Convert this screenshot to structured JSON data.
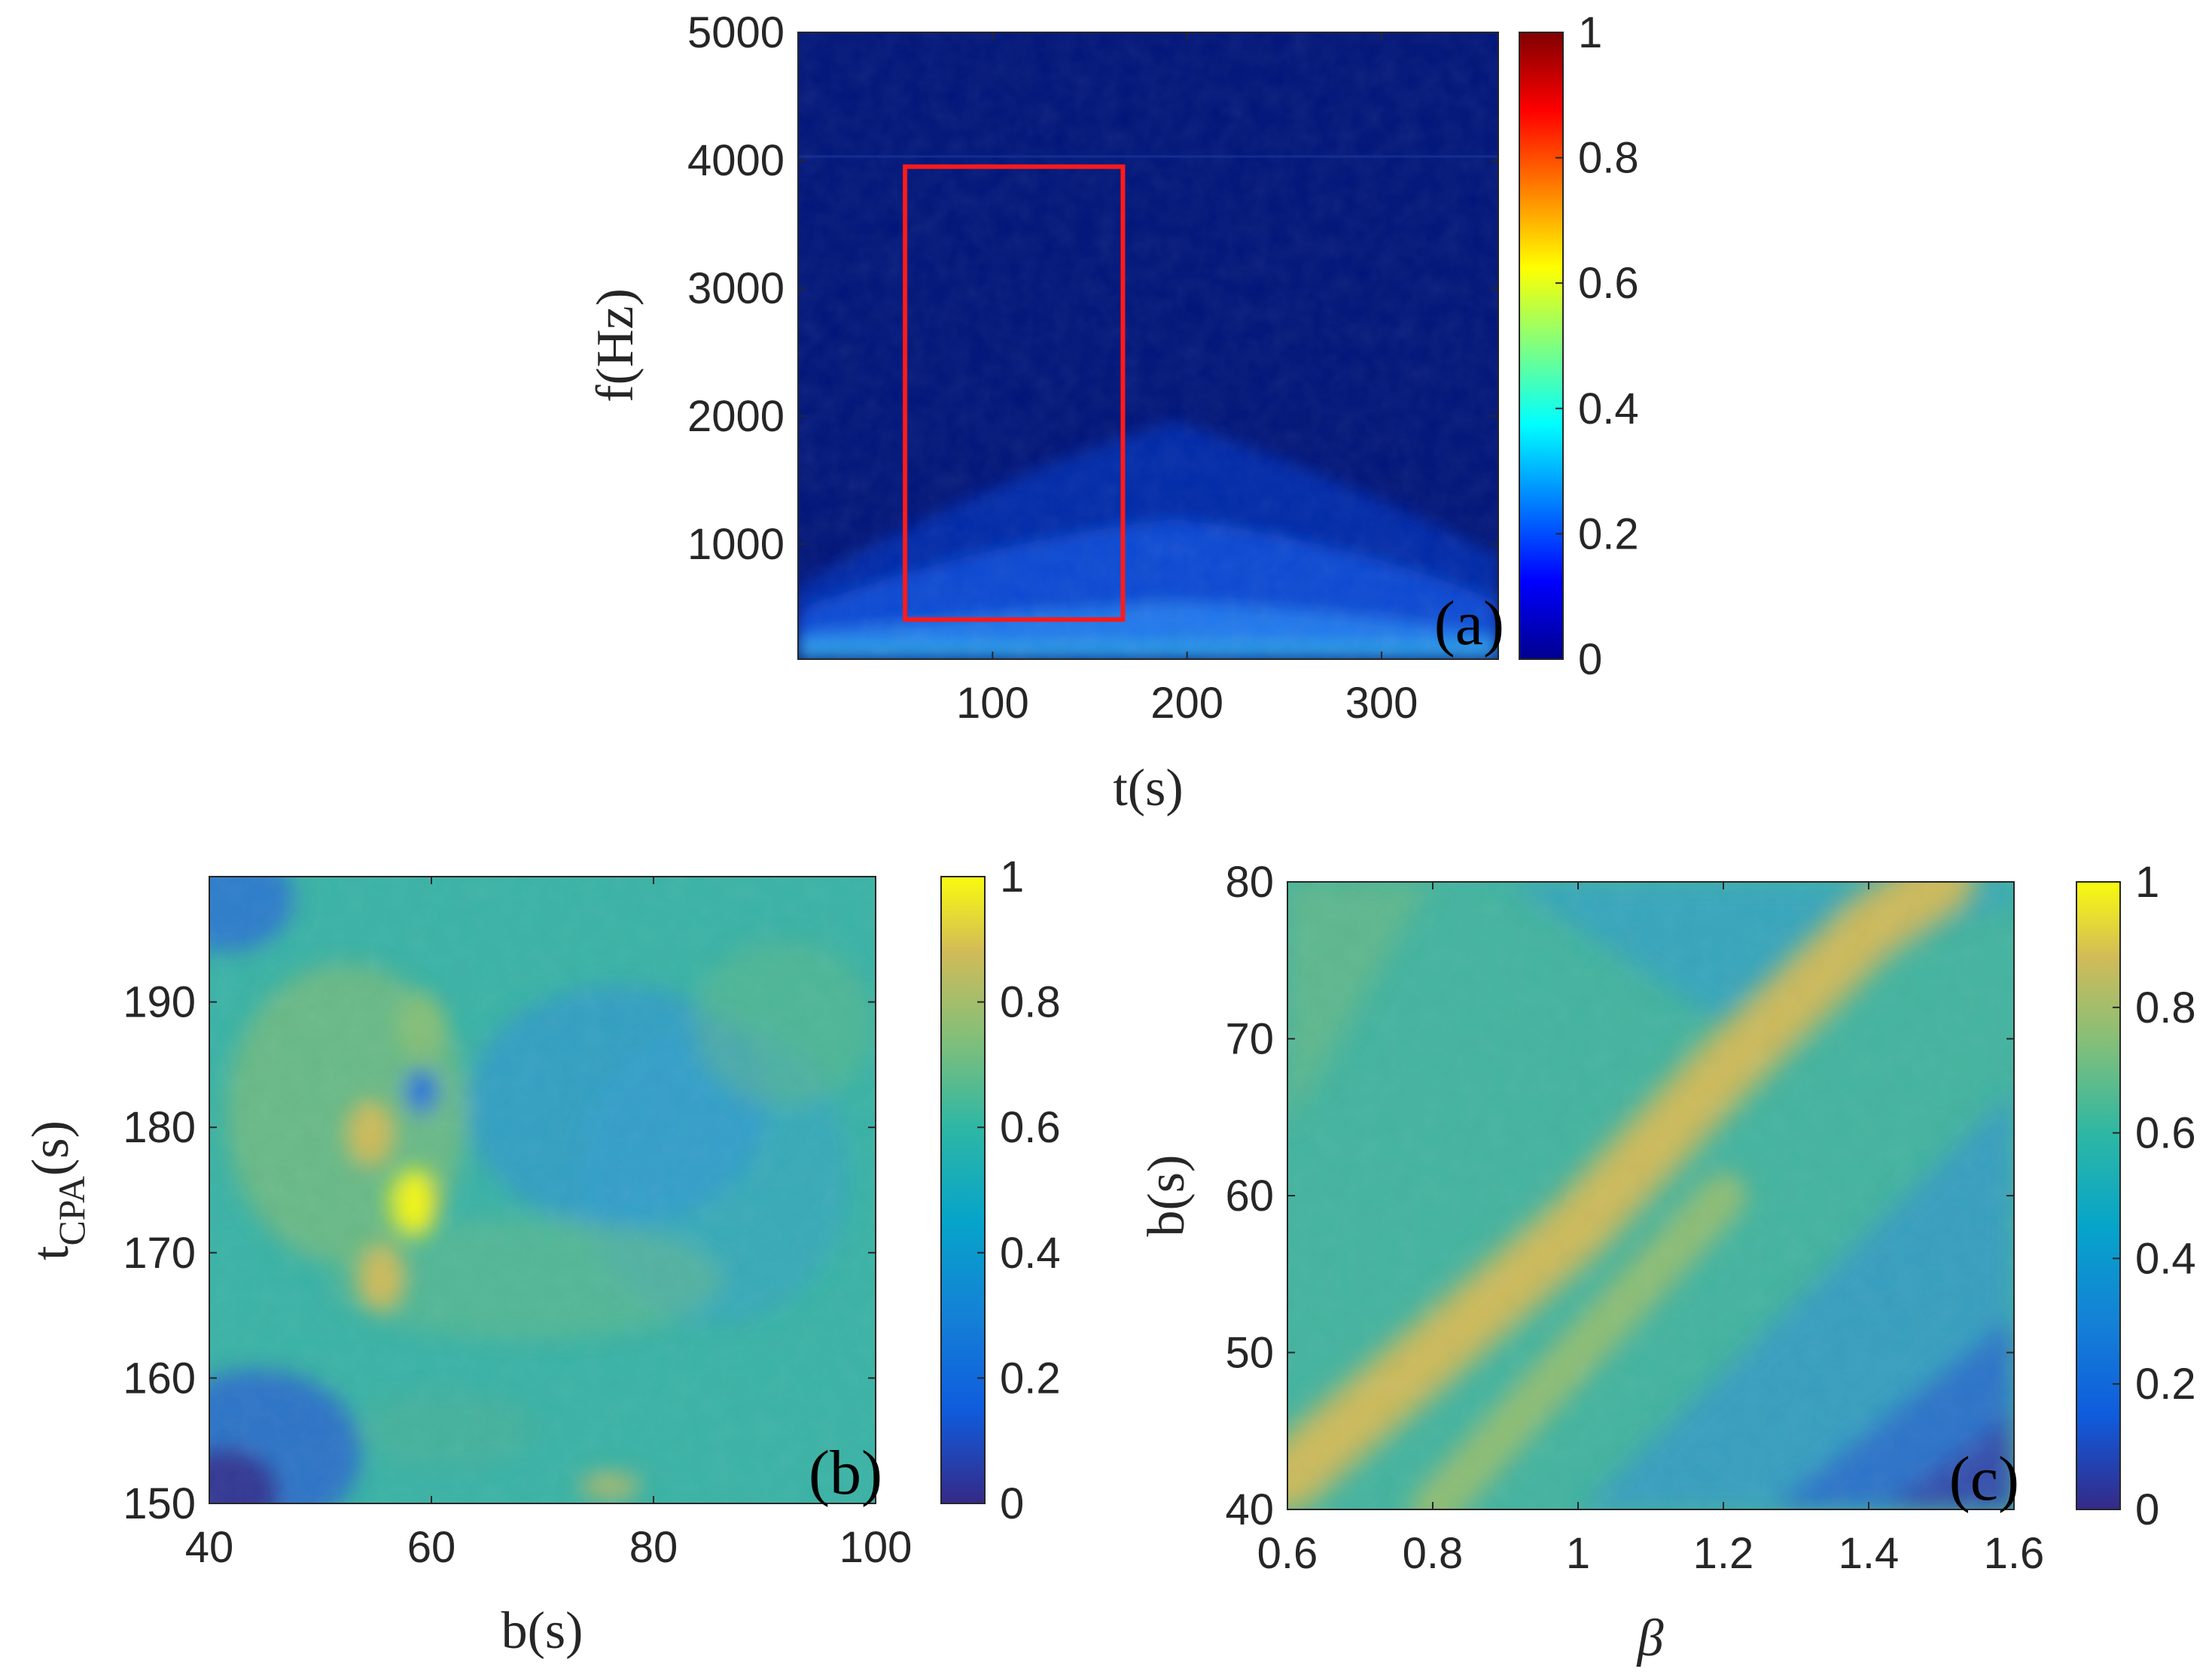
{
  "chart_data": [
    {
      "id": "a",
      "type": "heatmap",
      "panel_label": "(a)",
      "title": "",
      "xlabel": "t(s)",
      "ylabel": "f(Hz)",
      "xlim": [
        0,
        360
      ],
      "ylim": [
        100,
        5000
      ],
      "xticks": [
        100,
        200,
        300
      ],
      "yticks": [
        1000,
        2000,
        3000,
        4000,
        5000
      ],
      "colormap": "jet",
      "colorbar": {
        "min": 0,
        "max": 1,
        "ticks": [
          0,
          0.2,
          0.4,
          0.6,
          0.8,
          1
        ]
      },
      "annotations": [
        {
          "type": "rectangle",
          "color": "#ff1a1a",
          "x_range": [
            55,
            167
          ],
          "y_range": [
            410,
            3950
          ]
        }
      ],
      "description_values": {
        "background_level": 0.08,
        "max_level_near_low_freq": 0.45,
        "curve_minimum_t": 190
      }
    },
    {
      "id": "b",
      "type": "heatmap",
      "panel_label": "(b)",
      "title": "",
      "xlabel": "b(s)",
      "ylabel_main": "t",
      "ylabel_sub": "CPA",
      "ylabel_suffix": "(s)",
      "xlim": [
        40,
        100
      ],
      "ylim": [
        150,
        200
      ],
      "xticks": [
        40,
        60,
        80,
        100
      ],
      "yticks": [
        150,
        160,
        170,
        180,
        190
      ],
      "colormap": "parula",
      "colorbar": {
        "min": 0,
        "max": 1,
        "ticks": [
          0,
          0.2,
          0.4,
          0.6,
          0.8,
          1
        ]
      },
      "peaks": [
        {
          "b": 58.5,
          "t": 174,
          "value": 0.95
        },
        {
          "b": 54.5,
          "t": 179.5,
          "value": 0.88
        },
        {
          "b": 55.5,
          "t": 168,
          "value": 0.78
        },
        {
          "b": 59,
          "t": 188,
          "value": 0.72
        }
      ]
    },
    {
      "id": "c",
      "type": "heatmap",
      "panel_label": "(c)",
      "title": "",
      "xlabel": "β",
      "ylabel": "b(s)",
      "xlim": [
        0.6,
        1.6
      ],
      "ylim": [
        40,
        80
      ],
      "xticks": [
        0.6,
        0.8,
        1,
        1.2,
        1.4,
        1.6
      ],
      "xtick_labels": [
        "0.6",
        "0.8",
        "1",
        "1.2",
        "1.4",
        "1.6"
      ],
      "yticks": [
        40,
        50,
        60,
        70,
        80
      ],
      "colormap": "parula",
      "colorbar": {
        "min": 0,
        "max": 1,
        "ticks": [
          0,
          0.2,
          0.4,
          0.6,
          0.8,
          1
        ]
      },
      "ridges": [
        {
          "name": "main ridge",
          "points": [
            [
              0.6,
              42
            ],
            [
              0.8,
              50
            ],
            [
              1.0,
              58
            ],
            [
              1.2,
              68
            ],
            [
              1.4,
              77
            ],
            [
              1.5,
              80
            ]
          ],
          "value": 0.88
        },
        {
          "name": "secondary ridge",
          "points": [
            [
              0.8,
              40
            ],
            [
              0.9,
              45
            ],
            [
              1.0,
              50
            ],
            [
              1.1,
              55
            ],
            [
              1.2,
              60
            ]
          ],
          "value": 0.72
        }
      ]
    }
  ]
}
